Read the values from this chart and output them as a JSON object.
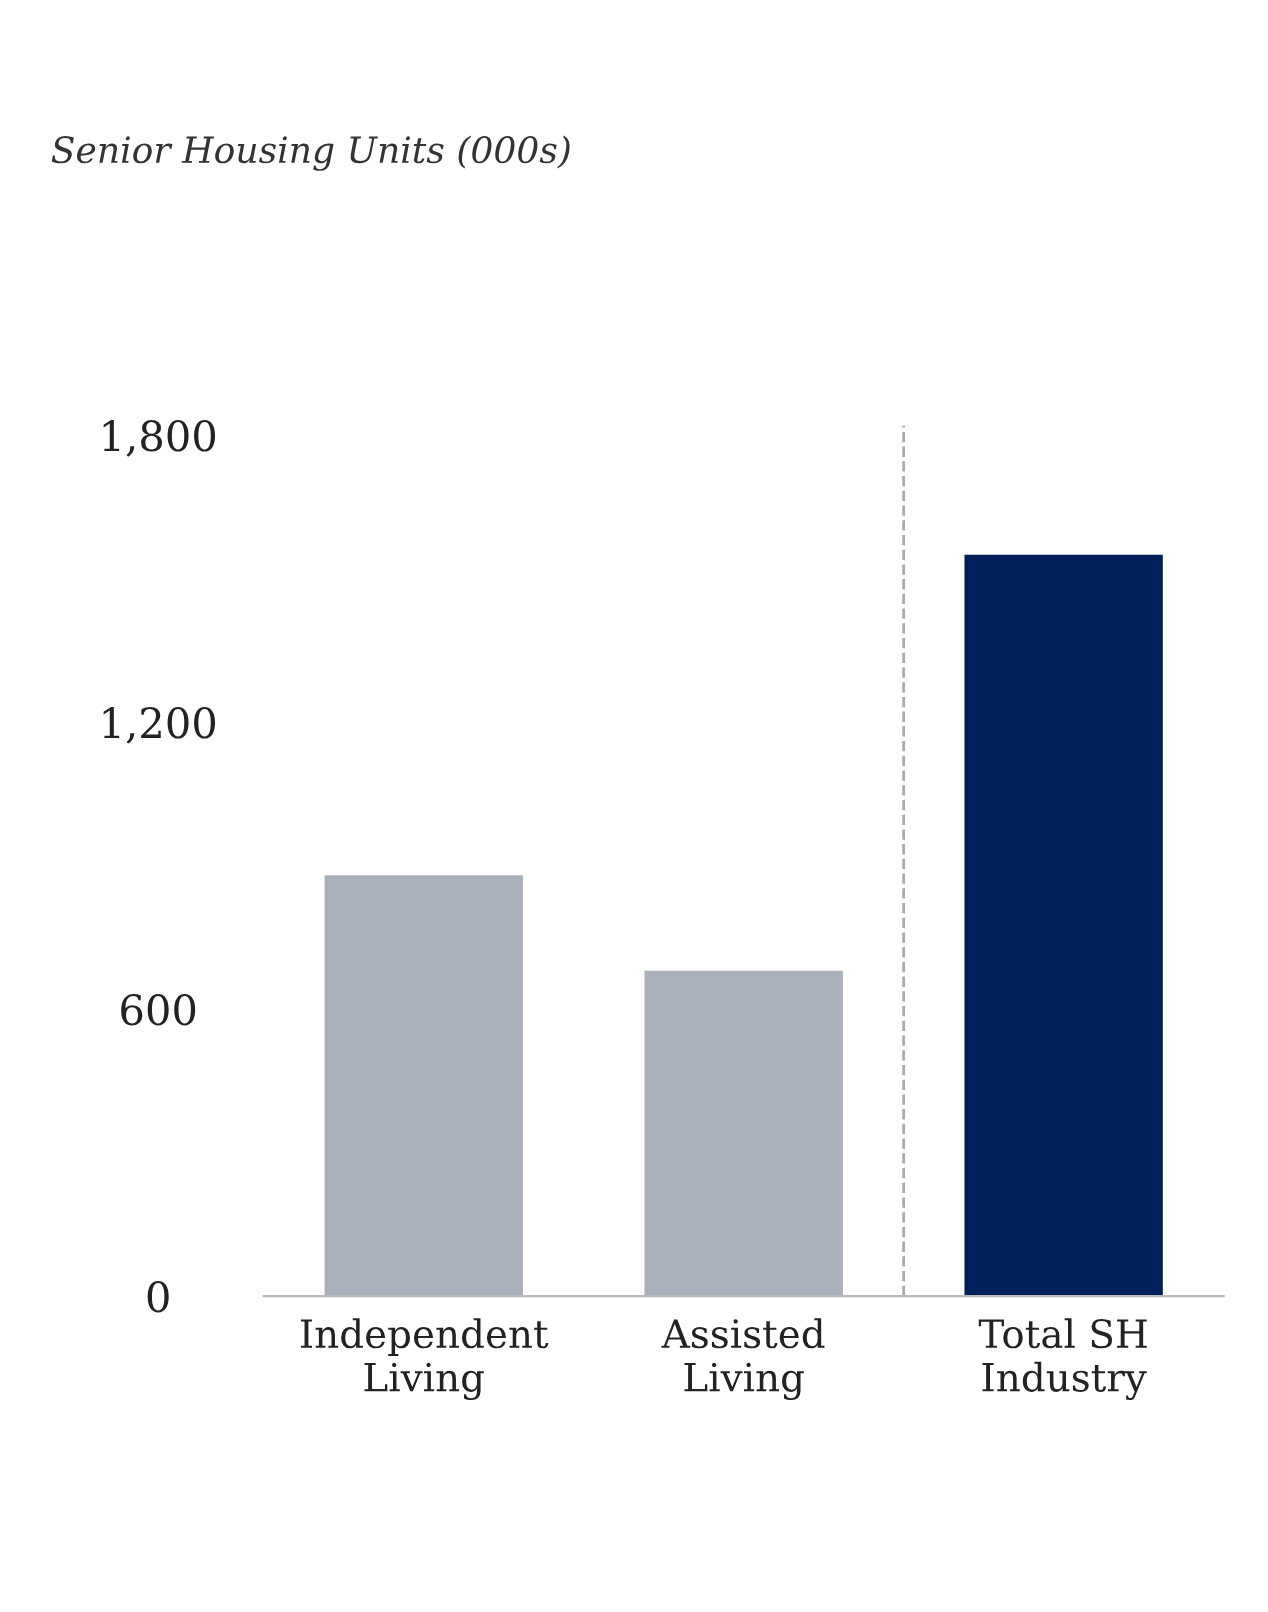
{
  "chart_data": {
    "type": "bar",
    "title": "Senior Housing Units (000s)",
    "categories": [
      "Independent\nLiving",
      "Assisted\nLiving",
      "Total SH\nIndustry"
    ],
    "values": [
      880,
      680,
      1550
    ],
    "colors": [
      "#a9afbb",
      "#a9afbb",
      "#00205b"
    ],
    "ylim": [
      0,
      1820
    ],
    "yticks": [
      {
        "value": 0,
        "label": "0"
      },
      {
        "value": 600,
        "label": "600"
      },
      {
        "value": 1200,
        "label": "1,200"
      },
      {
        "value": 1800,
        "label": "1,800"
      }
    ],
    "grid": false,
    "legend": false
  }
}
